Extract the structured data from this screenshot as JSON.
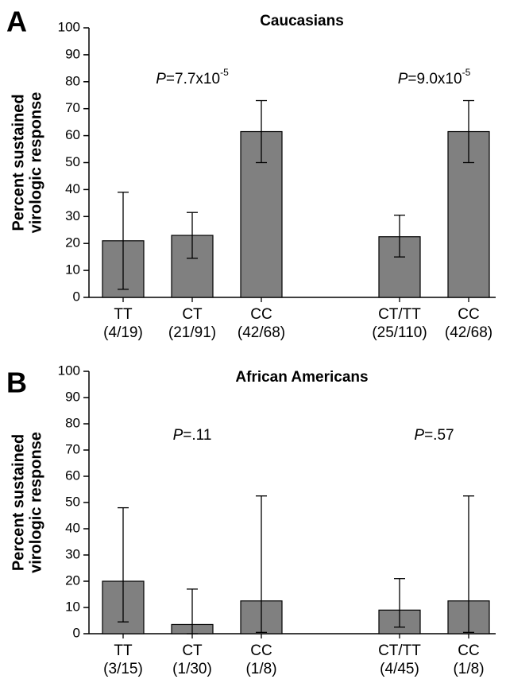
{
  "chart_data": [
    {
      "type": "bar",
      "panel": "A",
      "title": "Caucasians",
      "ylabel": [
        "Percent sustained",
        "virologic response"
      ],
      "categories": [
        "TT",
        "CT",
        "CC",
        null,
        "CT/TT",
        "CC"
      ],
      "counts": [
        "(4/19)",
        "(21/91)",
        "(42/68)",
        null,
        "(25/110)",
        "(42/68)"
      ],
      "values": [
        21,
        23,
        61.5,
        null,
        22.5,
        61.5
      ],
      "lower": [
        3,
        14.5,
        50,
        null,
        15,
        50
      ],
      "upper": [
        39,
        31.5,
        73,
        null,
        30.5,
        73
      ],
      "color": "#808080",
      "annotations": [
        {
          "italic": "P",
          "text": "=7.7x10",
          "sup": "-5"
        },
        {
          "italic": "P",
          "text": "=9.0x10",
          "sup": "-5"
        }
      ],
      "ylim": [
        0,
        100
      ],
      "yticks": [
        0,
        10,
        20,
        30,
        40,
        50,
        60,
        70,
        80,
        90,
        100
      ],
      "grid": false
    },
    {
      "type": "bar",
      "panel": "B",
      "title": "African Americans",
      "ylabel": [
        "Percent sustained",
        "virologic response"
      ],
      "categories": [
        "TT",
        "CT",
        "CC",
        null,
        "CT/TT",
        "CC"
      ],
      "counts": [
        "(3/15)",
        "(1/30)",
        "(1/8)",
        null,
        "(4/45)",
        "(1/8)"
      ],
      "values": [
        20,
        3.5,
        12.5,
        null,
        9,
        12.5
      ],
      "lower": [
        4.5,
        0,
        0.5,
        null,
        2.5,
        0.5
      ],
      "upper": [
        48,
        17,
        52.5,
        null,
        21,
        52.5
      ],
      "color": "#808080",
      "annotations": [
        {
          "italic": "P",
          "text": "=.11"
        },
        {
          "italic": "P",
          "text": "=.57"
        }
      ],
      "ylim": [
        0,
        100
      ],
      "yticks": [
        0,
        10,
        20,
        30,
        40,
        50,
        60,
        70,
        80,
        90,
        100
      ],
      "grid": false
    }
  ]
}
